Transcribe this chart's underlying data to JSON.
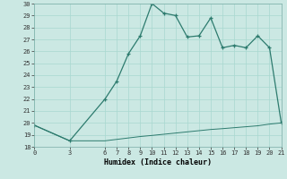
{
  "title": "",
  "xlabel": "Humidex (Indice chaleur)",
  "ylabel": "",
  "bg_color": "#cbe8e3",
  "line_color": "#2d7b6e",
  "grid_color": "#a8d8d0",
  "x_ticks": [
    0,
    3,
    6,
    7,
    8,
    9,
    10,
    11,
    12,
    13,
    14,
    15,
    16,
    17,
    18,
    19,
    20,
    21
  ],
  "ylim": [
    18,
    30
  ],
  "xlim": [
    0,
    21
  ],
  "y_ticks": [
    18,
    19,
    20,
    21,
    22,
    23,
    24,
    25,
    26,
    27,
    28,
    29,
    30
  ],
  "upper_line": [
    [
      0,
      19.8
    ],
    [
      3,
      18.5
    ],
    [
      6,
      22.0
    ],
    [
      7,
      23.5
    ],
    [
      8,
      25.8
    ],
    [
      9,
      27.3
    ],
    [
      10,
      30.0
    ],
    [
      11,
      29.2
    ],
    [
      12,
      29.0
    ],
    [
      13,
      27.2
    ],
    [
      14,
      27.3
    ],
    [
      15,
      28.8
    ],
    [
      16,
      26.3
    ],
    [
      17,
      26.5
    ],
    [
      18,
      26.3
    ],
    [
      19,
      27.3
    ],
    [
      20,
      26.3
    ],
    [
      21,
      20.0
    ]
  ],
  "lower_line": [
    [
      0,
      19.8
    ],
    [
      3,
      18.5
    ],
    [
      6,
      18.5
    ],
    [
      7,
      18.62
    ],
    [
      8,
      18.74
    ],
    [
      9,
      18.86
    ],
    [
      10,
      18.95
    ],
    [
      11,
      19.05
    ],
    [
      12,
      19.15
    ],
    [
      13,
      19.25
    ],
    [
      14,
      19.35
    ],
    [
      15,
      19.45
    ],
    [
      16,
      19.52
    ],
    [
      17,
      19.6
    ],
    [
      18,
      19.68
    ],
    [
      19,
      19.76
    ],
    [
      20,
      19.9
    ],
    [
      21,
      20.0
    ]
  ]
}
